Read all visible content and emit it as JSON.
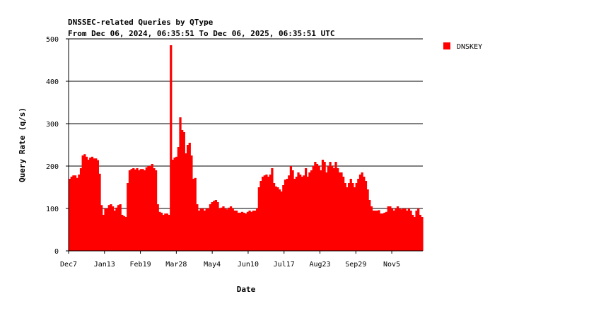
{
  "chart_data": {
    "type": "bar",
    "title": "DNSSEC-related Queries by QType",
    "subtitle": "From Dec 06, 2024, 06:35:51 To Dec 06, 2025, 06:35:51 UTC",
    "xlabel": "Date",
    "ylabel": "Query Rate (q/s)",
    "ylim": [
      0,
      500
    ],
    "y_ticks": [
      0,
      100,
      200,
      300,
      400,
      500
    ],
    "x_tick_labels": [
      "Dec7",
      "Jan13",
      "Feb19",
      "Mar28",
      "May4",
      "Jun10",
      "Jul17",
      "Aug23",
      "Sep29",
      "Nov5"
    ],
    "grid": "horizontal",
    "legend_position": "top-right",
    "series": [
      {
        "name": "DNSKEY",
        "color": "#ff0000",
        "values": [
          170,
          175,
          178,
          178,
          172,
          180,
          195,
          225,
          228,
          222,
          215,
          220,
          222,
          218,
          218,
          214,
          182,
          108,
          85,
          100,
          100,
          108,
          110,
          105,
          95,
          102,
          108,
          110,
          85,
          82,
          80,
          160,
          190,
          193,
          195,
          192,
          195,
          190,
          193,
          193,
          190,
          197,
          200,
          200,
          205,
          195,
          190,
          110,
          92,
          90,
          85,
          88,
          88,
          85,
          485,
          215,
          220,
          222,
          245,
          315,
          285,
          280,
          230,
          250,
          255,
          225,
          170,
          172,
          110,
          95,
          100,
          100,
          95,
          100,
          100,
          110,
          115,
          118,
          120,
          115,
          100,
          102,
          105,
          100,
          98,
          102,
          105,
          100,
          95,
          95,
          90,
          90,
          92,
          90,
          88,
          92,
          95,
          92,
          95,
          95,
          100,
          150,
          165,
          175,
          178,
          180,
          175,
          180,
          195,
          160,
          152,
          150,
          145,
          140,
          155,
          168,
          170,
          178,
          200,
          190,
          170,
          175,
          185,
          180,
          175,
          178,
          195,
          175,
          185,
          190,
          200,
          210,
          205,
          200,
          190,
          215,
          210,
          185,
          200,
          210,
          200,
          195,
          210,
          195,
          185,
          185,
          175,
          160,
          150,
          160,
          170,
          160,
          150,
          160,
          170,
          180,
          185,
          175,
          165,
          145,
          120,
          105,
          95,
          95,
          95,
          96,
          88,
          88,
          90,
          92,
          105,
          105,
          100,
          95,
          100,
          105,
          100,
          98,
          100,
          100,
          95,
          100,
          95,
          85,
          80,
          95,
          100,
          85,
          80
        ]
      }
    ]
  }
}
